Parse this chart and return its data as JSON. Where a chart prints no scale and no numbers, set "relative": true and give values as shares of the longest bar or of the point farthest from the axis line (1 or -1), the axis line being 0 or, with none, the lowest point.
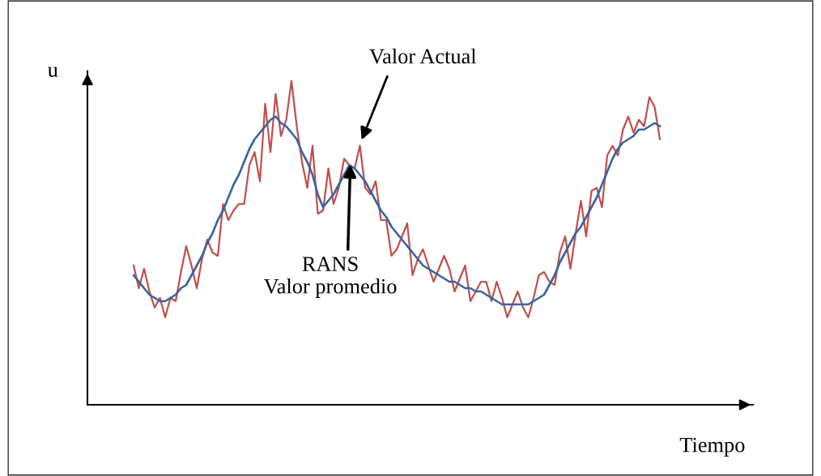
{
  "chart_data": {
    "type": "line",
    "relative": true,
    "xlabel": "Tiempo",
    "ylabel": "u",
    "tick_labels": false,
    "marker": "none",
    "line_style": "solid",
    "categories": [
      null,
      null,
      null,
      null,
      null,
      null,
      null,
      null,
      null,
      null,
      null,
      null,
      null,
      null,
      null,
      null,
      null,
      null,
      null,
      null,
      null,
      null,
      null,
      null,
      null,
      null,
      null,
      null,
      null,
      null,
      null,
      null,
      null,
      null,
      null,
      null,
      null,
      null,
      null,
      null,
      null,
      null,
      null,
      null,
      null,
      null,
      null,
      null,
      null,
      null,
      null,
      null,
      null,
      null,
      null,
      null,
      null,
      null,
      null,
      null,
      null,
      null,
      null,
      null,
      null,
      null,
      null,
      null,
      null,
      null,
      null,
      null,
      null,
      null,
      null,
      null,
      null,
      null,
      null,
      null,
      null,
      null,
      null,
      null,
      null,
      null,
      null,
      null,
      null,
      null,
      null,
      null,
      null,
      null,
      null,
      null,
      null,
      null,
      null,
      null,
      null
    ],
    "series": [
      {
        "color": "#c0504d",
        "values": [
          0.43,
          0.36,
          0.42,
          0.35,
          0.3,
          0.33,
          0.27,
          0.33,
          0.32,
          0.41,
          0.49,
          0.43,
          0.36,
          0.45,
          0.51,
          0.47,
          0.46,
          0.62,
          0.57,
          0.6,
          0.62,
          0.62,
          0.74,
          0.78,
          0.69,
          0.93,
          0.78,
          0.96,
          0.83,
          0.88,
          1.0,
          0.86,
          0.75,
          0.67,
          0.8,
          0.59,
          0.6,
          0.73,
          0.62,
          0.67,
          0.76,
          0.74,
          0.73,
          0.8,
          0.67,
          0.65,
          0.69,
          0.57,
          0.57,
          0.46,
          0.48,
          0.52,
          0.56,
          0.4,
          0.45,
          0.48,
          0.43,
          0.38,
          0.42,
          0.46,
          0.42,
          0.35,
          0.39,
          0.43,
          0.32,
          0.35,
          0.38,
          0.38,
          0.32,
          0.38,
          0.33,
          0.27,
          0.31,
          0.35,
          0.3,
          0.27,
          0.33,
          0.4,
          0.41,
          0.38,
          0.37,
          0.47,
          0.52,
          0.42,
          0.53,
          0.63,
          0.52,
          0.66,
          0.67,
          0.61,
          0.77,
          0.8,
          0.77,
          0.85,
          0.89,
          0.84,
          0.88,
          0.86,
          0.95,
          0.92,
          0.82
        ]
      },
      {
        "color": "#3a64a0",
        "values": [
          0.4,
          0.38,
          0.36,
          0.34,
          0.33,
          0.32,
          0.32,
          0.33,
          0.34,
          0.36,
          0.37,
          0.4,
          0.43,
          0.46,
          0.5,
          0.53,
          0.57,
          0.6,
          0.64,
          0.68,
          0.71,
          0.75,
          0.79,
          0.82,
          0.84,
          0.86,
          0.88,
          0.89,
          0.87,
          0.86,
          0.84,
          0.82,
          0.78,
          0.75,
          0.71,
          0.65,
          0.61,
          0.63,
          0.65,
          0.68,
          0.71,
          0.74,
          0.73,
          0.71,
          0.69,
          0.66,
          0.63,
          0.6,
          0.58,
          0.55,
          0.53,
          0.51,
          0.49,
          0.47,
          0.45,
          0.43,
          0.42,
          0.41,
          0.4,
          0.39,
          0.38,
          0.38,
          0.37,
          0.36,
          0.36,
          0.35,
          0.35,
          0.34,
          0.33,
          0.32,
          0.31,
          0.31,
          0.31,
          0.31,
          0.31,
          0.31,
          0.32,
          0.33,
          0.34,
          0.37,
          0.4,
          0.44,
          0.47,
          0.5,
          0.53,
          0.55,
          0.58,
          0.61,
          0.64,
          0.68,
          0.72,
          0.76,
          0.79,
          0.81,
          0.82,
          0.83,
          0.85,
          0.85,
          0.86,
          0.87,
          0.86
        ]
      }
    ],
    "annotations": [
      "Valor Actual",
      "RANS\nValor promedio"
    ]
  }
}
